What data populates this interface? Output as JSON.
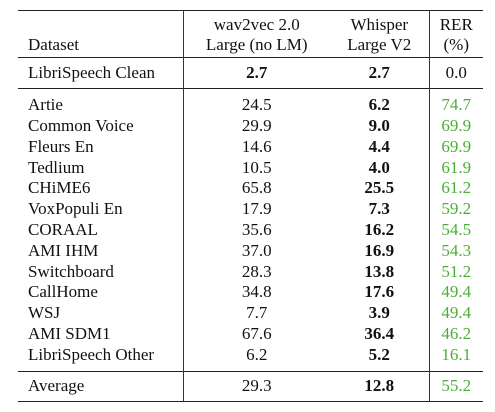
{
  "header": {
    "dataset": "Dataset",
    "w2v_line1": "wav2vec 2.0",
    "w2v_line2": "Large (no LM)",
    "whisper_line1": "Whisper",
    "whisper_line2": "Large V2",
    "rer_line1": "RER",
    "rer_line2": "(%)"
  },
  "colors": {
    "rer_text": "#4caf35"
  },
  "reference": {
    "dataset": "LibriSpeech Clean",
    "w2v": "2.7",
    "whisper": "2.7",
    "rer": "0.0"
  },
  "rows": [
    {
      "dataset": "Artie",
      "w2v": "24.5",
      "whisper": "6.2",
      "rer": "74.7"
    },
    {
      "dataset": "Common Voice",
      "w2v": "29.9",
      "whisper": "9.0",
      "rer": "69.9"
    },
    {
      "dataset": "Fleurs En",
      "w2v": "14.6",
      "whisper": "4.4",
      "rer": "69.9"
    },
    {
      "dataset": "Tedlium",
      "w2v": "10.5",
      "whisper": "4.0",
      "rer": "61.9"
    },
    {
      "dataset": "CHiME6",
      "w2v": "65.8",
      "whisper": "25.5",
      "rer": "61.2"
    },
    {
      "dataset": "VoxPopuli En",
      "w2v": "17.9",
      "whisper": "7.3",
      "rer": "59.2"
    },
    {
      "dataset": "CORAAL",
      "w2v": "35.6",
      "whisper": "16.2",
      "rer": "54.5"
    },
    {
      "dataset": "AMI IHM",
      "w2v": "37.0",
      "whisper": "16.9",
      "rer": "54.3"
    },
    {
      "dataset": "Switchboard",
      "w2v": "28.3",
      "whisper": "13.8",
      "rer": "51.2"
    },
    {
      "dataset": "CallHome",
      "w2v": "34.8",
      "whisper": "17.6",
      "rer": "49.4"
    },
    {
      "dataset": "WSJ",
      "w2v": "7.7",
      "whisper": "3.9",
      "rer": "49.4"
    },
    {
      "dataset": "AMI SDM1",
      "w2v": "67.6",
      "whisper": "36.4",
      "rer": "46.2"
    },
    {
      "dataset": "LibriSpeech Other",
      "w2v": "6.2",
      "whisper": "5.2",
      "rer": "16.1"
    }
  ],
  "average": {
    "dataset": "Average",
    "w2v": "29.3",
    "whisper": "12.8",
    "rer": "55.2"
  }
}
